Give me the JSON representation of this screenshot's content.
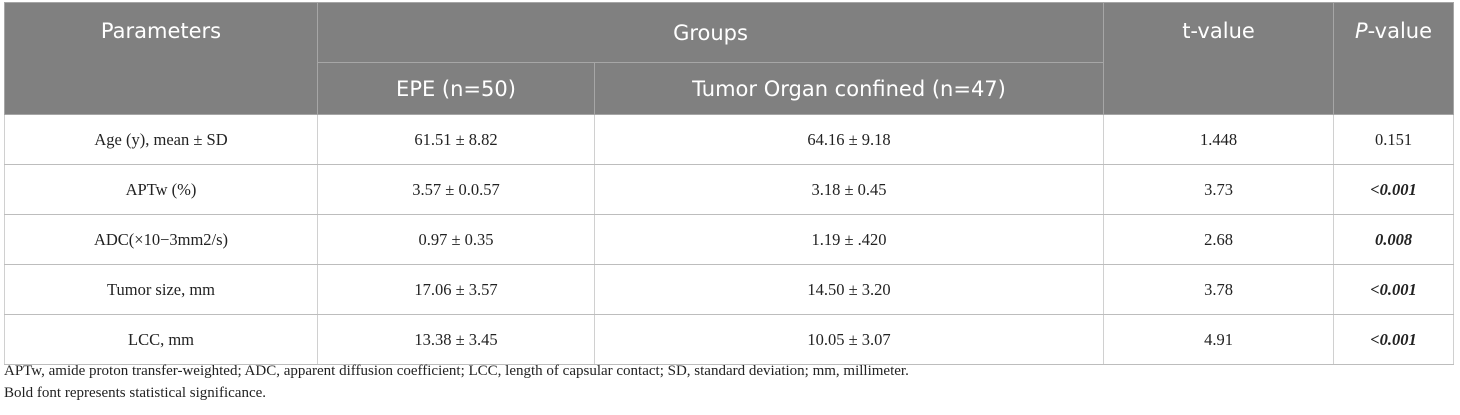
{
  "table": {
    "header": {
      "parameters": "Parameters",
      "groups": "Groups",
      "epe": "EPE (n=50)",
      "organ": "Tumor Organ confined (n=47)",
      "t_value": "t-value",
      "p_value": [
        "P",
        "-value"
      ]
    },
    "rows": [
      {
        "parameter": "Age (y), mean ± SD",
        "epe": "61.51 ± 8.82",
        "organ": "64.16 ± 9.18",
        "t_value": "1.448",
        "p_value": "0.151",
        "significant": false
      },
      {
        "parameter": "APTw (%)",
        "epe": "3.57 ± 0.0.57",
        "organ": "3.18 ± 0.45",
        "t_value": "3.73",
        "p_value": "<0.001",
        "significant": true
      },
      {
        "parameter": "ADC(×10−3mm2/s)",
        "epe": "0.97 ± 0.35",
        "organ": "1.19 ± .420",
        "t_value": "2.68",
        "p_value": "0.008",
        "significant": true
      },
      {
        "parameter": "Tumor size, mm",
        "epe": "17.06 ± 3.57",
        "organ": "14.50 ± 3.20",
        "t_value": "3.78",
        "p_value": "<0.001",
        "significant": true
      },
      {
        "parameter": "LCC, mm",
        "epe": "13.38 ± 3.45",
        "organ": "10.05 ± 3.07",
        "t_value": "4.91",
        "p_value": "<0.001",
        "significant": true
      }
    ]
  },
  "notes": [
    "APTw, amide proton transfer-weighted; ADC, apparent diffusion coefficient; LCC, length of capsular contact; SD, standard deviation; mm, millimeter.",
    "Bold font represents statistical significance."
  ]
}
